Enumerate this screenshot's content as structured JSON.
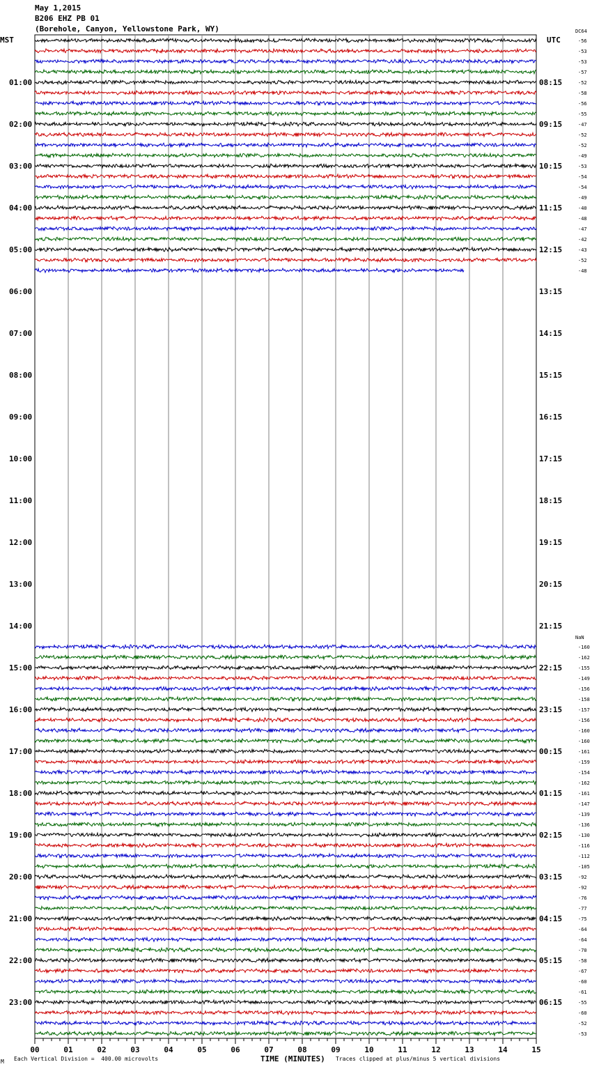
{
  "header": {
    "date": "May 1,2015",
    "station": "B206 EHZ PB 01",
    "location": "(Borehole, Canyon, Yellowstone Park, WY)"
  },
  "footer": {
    "scale_note": "Each Vertical Division =  400.00 microvolts",
    "clip_note": "Traces clipped at plus/minus 5 vertical divisions",
    "mark": "M"
  },
  "colors": {
    "trace_cycle": [
      "#000000",
      "#cc0000",
      "#0000cc",
      "#006600"
    ],
    "grid": "#808080"
  },
  "chart_data": {
    "type": "line",
    "title": "",
    "xlabel": "TIME (MINUTES)",
    "ylabel": "",
    "left_axis_label": "MST",
    "right_axis_label": "UTC",
    "dc_label": "DC",
    "x_ticks": [
      "00",
      "01",
      "02",
      "03",
      "04",
      "05",
      "06",
      "07",
      "08",
      "09",
      "10",
      "11",
      "12",
      "13",
      "14",
      "15"
    ],
    "xlim": [
      0,
      15
    ],
    "minutes_per_row": 15,
    "rows_total": 96,
    "hour_labels_mst": [
      "01:00",
      "02:00",
      "03:00",
      "04:00",
      "05:00",
      "06:00",
      "07:00",
      "08:00",
      "09:00",
      "10:00",
      "11:00",
      "12:00",
      "13:00",
      "14:00",
      "15:00",
      "16:00",
      "17:00",
      "18:00",
      "19:00",
      "20:00",
      "21:00",
      "22:00",
      "23:00"
    ],
    "hour_labels_utc": [
      "08:15",
      "09:15",
      "10:15",
      "11:15",
      "12:15",
      "13:15",
      "14:15",
      "15:15",
      "16:15",
      "17:15",
      "18:15",
      "19:15",
      "20:15",
      "21:15",
      "22:15",
      "23:15",
      "00:15",
      "01:15",
      "02:15",
      "03:15",
      "04:15",
      "05:15",
      "06:15"
    ],
    "segments": [
      {
        "dc_header": "64",
        "start_row": 0,
        "last_row_end_minute": 12.85,
        "offsets": [
          "-56",
          "-53",
          "-53",
          "-57",
          "-52",
          "-58",
          "-56",
          "-55",
          "-47",
          "-52",
          "-52",
          "-49",
          "-53",
          "-54",
          "-54",
          "-49",
          "-40",
          "-48",
          "-47",
          "-42",
          "-43",
          "-52",
          "-48"
        ]
      },
      {
        "dc_header": "NaN",
        "start_row": 58,
        "last_row_end_minute": 15,
        "offsets": [
          "-160",
          "-162",
          "-155",
          "-149",
          "-156",
          "-158",
          "-157",
          "-156",
          "-160",
          "-160",
          "-161",
          "-159",
          "-154",
          "-162",
          "-161",
          "-147",
          "-139",
          "-136",
          "-130",
          "-116",
          "-112",
          "-105",
          "-92",
          "-92",
          "-76",
          "-77",
          "-75",
          "-64",
          "-64",
          "-70",
          "-58",
          "-67",
          "-60",
          "-61",
          "-55",
          "-60",
          "-52",
          "-53"
        ]
      }
    ]
  }
}
